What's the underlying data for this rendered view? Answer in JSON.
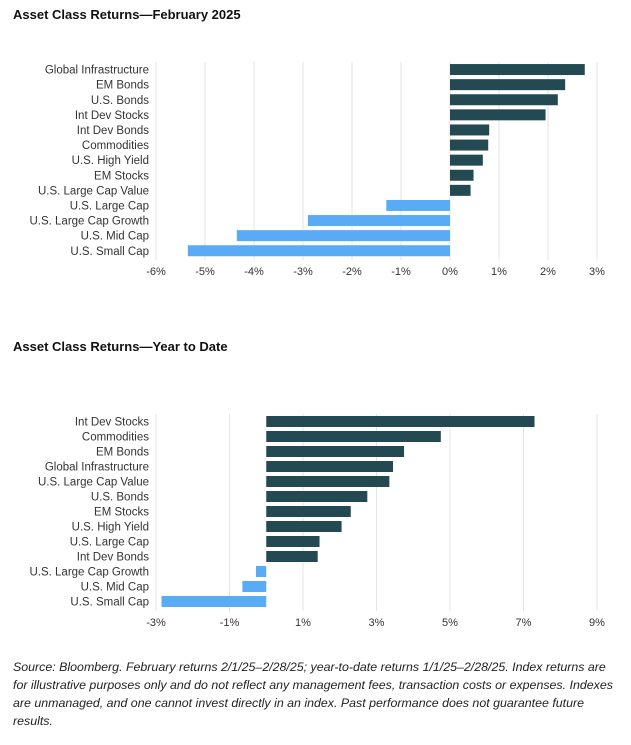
{
  "chart_data": [
    {
      "type": "bar",
      "orientation": "horizontal",
      "title": "Asset Class Returns—February 2025",
      "categories": [
        "Global Infrastructure",
        "EM Bonds",
        "U.S. Bonds",
        "Int Dev Stocks",
        "Int Dev Bonds",
        "Commodities",
        "U.S. High Yield",
        "EM Stocks",
        "U.S. Large Cap Value",
        "U.S. Large Cap",
        "U.S. Large Cap Growth",
        "U.S. Mid Cap",
        "U.S. Small Cap"
      ],
      "values": [
        2.75,
        2.35,
        2.2,
        1.95,
        0.8,
        0.78,
        0.67,
        0.48,
        0.42,
        -1.3,
        -2.9,
        -4.35,
        -5.35
      ],
      "xlim": [
        -6,
        3
      ],
      "ticks": [
        -6,
        -5,
        -4,
        -3,
        -2,
        -1,
        0,
        1,
        2,
        3
      ],
      "tick_labels": [
        "-6%",
        "-5%",
        "-4%",
        "-3%",
        "-2%",
        "-1%",
        "0%",
        "1%",
        "2%",
        "3%"
      ],
      "grid": true
    },
    {
      "type": "bar",
      "orientation": "horizontal",
      "title": "Asset Class Returns—Year to Date",
      "categories": [
        "Int Dev Stocks",
        "Commodities",
        "EM Bonds",
        "Global Infrastructure",
        "U.S. Large Cap Value",
        "U.S. Bonds",
        "EM Stocks",
        "U.S. High Yield",
        "U.S. Large Cap",
        "Int Dev Bonds",
        "U.S. Large Cap Growth",
        "U.S. Mid Cap",
        "U.S. Small Cap"
      ],
      "values": [
        7.3,
        4.75,
        3.75,
        3.45,
        3.35,
        2.75,
        2.3,
        2.05,
        1.45,
        1.4,
        -0.28,
        -0.65,
        -2.85
      ],
      "xlim": [
        -3,
        9
      ],
      "ticks": [
        -3,
        -1,
        1,
        3,
        5,
        7,
        9
      ],
      "tick_labels": [
        "-3%",
        "-1%",
        "1%",
        "3%",
        "5%",
        "7%",
        "9%"
      ],
      "grid": true
    }
  ],
  "colors": {
    "positive": "#234a52",
    "negative": "#5aabf5",
    "grid": "#e3e3e3",
    "text": "#333333"
  },
  "source_note": "Source: Bloomberg. February returns 2/1/25–2/28/25; year-to-date returns 1/1/25–2/28/25. Index returns are for illustrative purposes only and do not reflect any management fees, transaction costs or expenses. Indexes are unmanaged, and one cannot invest directly in an index. Past performance does not guarantee future results."
}
